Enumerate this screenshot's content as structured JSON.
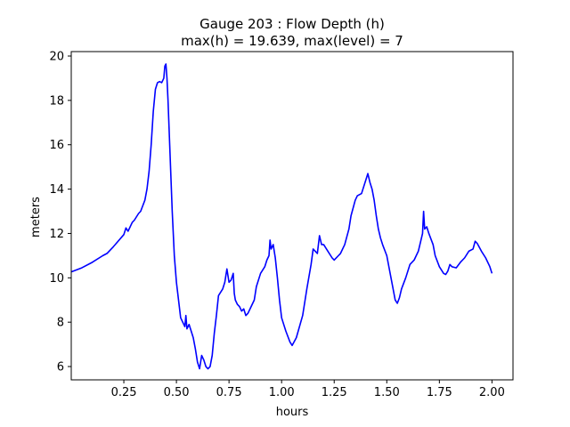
{
  "chart_data": {
    "type": "line",
    "title_line1": "Gauge 203 : Flow Depth (h)",
    "title_line2": "max(h) =  19.639,    max(level) = 7",
    "xlabel": "hours",
    "ylabel": "meters",
    "xlim": [
      0.0,
      2.1
    ],
    "ylim": [
      5.4,
      20.2
    ],
    "xticks": [
      0.25,
      0.5,
      0.75,
      1.0,
      1.25,
      1.5,
      1.75,
      2.0
    ],
    "xtick_labels": [
      "0.25",
      "0.50",
      "0.75",
      "1.00",
      "1.25",
      "1.50",
      "1.75",
      "2.00"
    ],
    "yticks": [
      6,
      8,
      10,
      12,
      14,
      16,
      18,
      20
    ],
    "ytick_labels": [
      "6",
      "8",
      "10",
      "12",
      "14",
      "16",
      "18",
      "20"
    ],
    "series": [
      {
        "color": "#0000ff",
        "points": [
          [
            0.0,
            10.27
          ],
          [
            0.05,
            10.45
          ],
          [
            0.1,
            10.7
          ],
          [
            0.15,
            11.0
          ],
          [
            0.17,
            11.1
          ],
          [
            0.2,
            11.4
          ],
          [
            0.25,
            11.95
          ],
          [
            0.26,
            12.25
          ],
          [
            0.27,
            12.1
          ],
          [
            0.28,
            12.3
          ],
          [
            0.29,
            12.5
          ],
          [
            0.3,
            12.6
          ],
          [
            0.32,
            12.9
          ],
          [
            0.33,
            13.0
          ],
          [
            0.35,
            13.5
          ],
          [
            0.36,
            14.0
          ],
          [
            0.37,
            14.8
          ],
          [
            0.38,
            16.0
          ],
          [
            0.39,
            17.5
          ],
          [
            0.4,
            18.5
          ],
          [
            0.41,
            18.8
          ],
          [
            0.42,
            18.85
          ],
          [
            0.43,
            18.8
          ],
          [
            0.44,
            19.0
          ],
          [
            0.445,
            19.55
          ],
          [
            0.45,
            19.639
          ],
          [
            0.455,
            19.0
          ],
          [
            0.46,
            18.0
          ],
          [
            0.47,
            15.5
          ],
          [
            0.48,
            13.0
          ],
          [
            0.49,
            11.0
          ],
          [
            0.5,
            9.8
          ],
          [
            0.51,
            9.0
          ],
          [
            0.52,
            8.2
          ],
          [
            0.53,
            8.0
          ],
          [
            0.54,
            7.8
          ],
          [
            0.545,
            8.3
          ],
          [
            0.55,
            7.7
          ],
          [
            0.56,
            7.9
          ],
          [
            0.57,
            7.6
          ],
          [
            0.58,
            7.3
          ],
          [
            0.59,
            6.8
          ],
          [
            0.6,
            6.2
          ],
          [
            0.61,
            5.9
          ],
          [
            0.62,
            6.5
          ],
          [
            0.63,
            6.3
          ],
          [
            0.64,
            6.0
          ],
          [
            0.65,
            5.9
          ],
          [
            0.66,
            6.0
          ],
          [
            0.67,
            6.5
          ],
          [
            0.68,
            7.5
          ],
          [
            0.69,
            8.3
          ],
          [
            0.7,
            9.2
          ],
          [
            0.72,
            9.5
          ],
          [
            0.73,
            9.8
          ],
          [
            0.74,
            10.4
          ],
          [
            0.75,
            9.8
          ],
          [
            0.76,
            9.9
          ],
          [
            0.77,
            10.2
          ],
          [
            0.775,
            9.3
          ],
          [
            0.78,
            9.0
          ],
          [
            0.79,
            8.8
          ],
          [
            0.8,
            8.7
          ],
          [
            0.81,
            8.5
          ],
          [
            0.82,
            8.6
          ],
          [
            0.83,
            8.3
          ],
          [
            0.84,
            8.4
          ],
          [
            0.85,
            8.6
          ],
          [
            0.87,
            9.0
          ],
          [
            0.88,
            9.6
          ],
          [
            0.9,
            10.2
          ],
          [
            0.92,
            10.5
          ],
          [
            0.93,
            10.8
          ],
          [
            0.94,
            11.0
          ],
          [
            0.945,
            11.7
          ],
          [
            0.95,
            11.3
          ],
          [
            0.96,
            11.5
          ],
          [
            0.97,
            10.9
          ],
          [
            0.98,
            10.0
          ],
          [
            0.99,
            9.0
          ],
          [
            1.0,
            8.2
          ],
          [
            1.02,
            7.6
          ],
          [
            1.04,
            7.1
          ],
          [
            1.05,
            6.95
          ],
          [
            1.07,
            7.3
          ],
          [
            1.1,
            8.3
          ],
          [
            1.12,
            9.5
          ],
          [
            1.14,
            10.6
          ],
          [
            1.15,
            11.3
          ],
          [
            1.16,
            11.2
          ],
          [
            1.17,
            11.1
          ],
          [
            1.18,
            11.9
          ],
          [
            1.19,
            11.5
          ],
          [
            1.2,
            11.5
          ],
          [
            1.22,
            11.2
          ],
          [
            1.24,
            10.9
          ],
          [
            1.25,
            10.8
          ],
          [
            1.27,
            11.0
          ],
          [
            1.28,
            11.1
          ],
          [
            1.3,
            11.5
          ],
          [
            1.32,
            12.2
          ],
          [
            1.33,
            12.8
          ],
          [
            1.35,
            13.5
          ],
          [
            1.36,
            13.7
          ],
          [
            1.38,
            13.8
          ],
          [
            1.4,
            14.4
          ],
          [
            1.41,
            14.7
          ],
          [
            1.42,
            14.3
          ],
          [
            1.43,
            14.0
          ],
          [
            1.44,
            13.5
          ],
          [
            1.45,
            12.8
          ],
          [
            1.46,
            12.2
          ],
          [
            1.47,
            11.8
          ],
          [
            1.48,
            11.5
          ],
          [
            1.5,
            11.0
          ],
          [
            1.51,
            10.5
          ],
          [
            1.52,
            10.0
          ],
          [
            1.53,
            9.5
          ],
          [
            1.54,
            9.0
          ],
          [
            1.55,
            8.85
          ],
          [
            1.56,
            9.1
          ],
          [
            1.57,
            9.5
          ],
          [
            1.59,
            10.0
          ],
          [
            1.61,
            10.6
          ],
          [
            1.63,
            10.8
          ],
          [
            1.65,
            11.2
          ],
          [
            1.66,
            11.6
          ],
          [
            1.67,
            12.0
          ],
          [
            1.675,
            13.0
          ],
          [
            1.68,
            12.2
          ],
          [
            1.69,
            12.3
          ],
          [
            1.7,
            12.0
          ],
          [
            1.72,
            11.5
          ],
          [
            1.73,
            11.0
          ],
          [
            1.75,
            10.5
          ],
          [
            1.77,
            10.2
          ],
          [
            1.78,
            10.15
          ],
          [
            1.79,
            10.3
          ],
          [
            1.8,
            10.6
          ],
          [
            1.81,
            10.5
          ],
          [
            1.83,
            10.45
          ],
          [
            1.85,
            10.7
          ],
          [
            1.87,
            10.9
          ],
          [
            1.89,
            11.2
          ],
          [
            1.91,
            11.3
          ],
          [
            1.92,
            11.65
          ],
          [
            1.93,
            11.55
          ],
          [
            1.95,
            11.2
          ],
          [
            1.97,
            10.9
          ],
          [
            1.99,
            10.5
          ],
          [
            2.0,
            10.2
          ]
        ]
      }
    ]
  }
}
